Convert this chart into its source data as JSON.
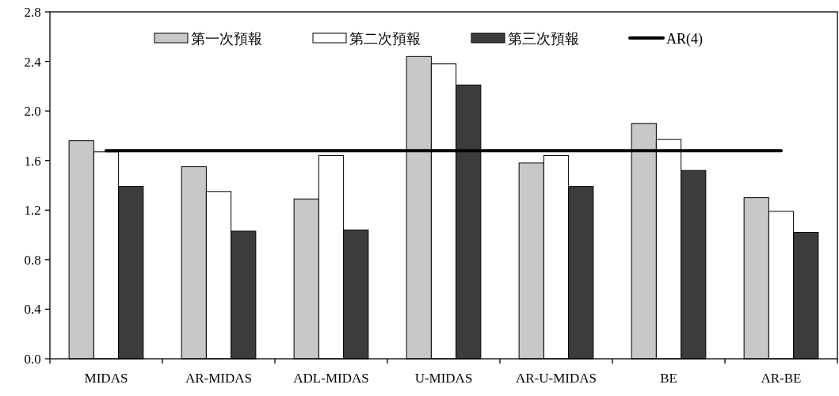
{
  "chart_data": {
    "type": "bar",
    "categories": [
      "MIDAS",
      "AR-MIDAS",
      "ADL-MIDAS",
      "U-MIDAS",
      "AR-U-MIDAS",
      "BE",
      "AR-BE"
    ],
    "series": [
      {
        "name": "第一次預報",
        "color": "#c8c8c8",
        "values": [
          1.76,
          1.55,
          1.29,
          2.44,
          1.58,
          1.9,
          1.3
        ]
      },
      {
        "name": "第二次預報",
        "color": "#ffffff",
        "values": [
          1.67,
          1.35,
          1.64,
          2.38,
          1.64,
          1.77,
          1.19
        ]
      },
      {
        "name": "第三次預報",
        "color": "#3c3c3c",
        "values": [
          1.39,
          1.03,
          1.04,
          2.21,
          1.39,
          1.52,
          1.02
        ]
      },
      {
        "name": "AR(4)",
        "type": "line",
        "color": "#000000",
        "values": [
          1.68,
          1.68,
          1.68,
          1.68,
          1.68,
          1.68,
          1.68
        ]
      }
    ],
    "ylim": [
      0,
      2.8
    ],
    "yticks": [
      {
        "value": 0,
        "label": "0.0"
      },
      0.4,
      0.8,
      1.2,
      1.6,
      {
        "value": 2,
        "label": "2.0"
      },
      2.4,
      2.8
    ],
    "grid": false,
    "legend": "top"
  }
}
